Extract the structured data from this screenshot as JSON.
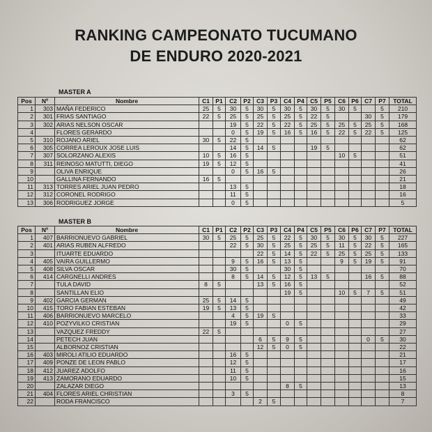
{
  "header": {
    "title_line1": "RANKING CAMPEONATO TUCUMANO",
    "title_line2": "DE ENDURO 2020-2021"
  },
  "columns": [
    "Pos",
    "Nº",
    "Nombre",
    "C1",
    "P1",
    "C2",
    "P2",
    "C3",
    "P3",
    "C4",
    "P4",
    "C5",
    "P5",
    "C6",
    "P6",
    "C7",
    "P7",
    "TOTAL"
  ],
  "tables": [
    {
      "label": "MASTER A",
      "rows": [
        [
          1,
          303,
          "MAÑA FEDERICO",
          25,
          5,
          30,
          5,
          30,
          5,
          30,
          5,
          30,
          5,
          30,
          5,
          null,
          5,
          210
        ],
        [
          2,
          301,
          "FRIAS SANTIAGO",
          22,
          5,
          25,
          5,
          25,
          5,
          25,
          5,
          22,
          5,
          null,
          null,
          30,
          5,
          179
        ],
        [
          3,
          302,
          "ARIAS NELSON OSCAR",
          null,
          null,
          19,
          5,
          22,
          5,
          22,
          5,
          25,
          5,
          25,
          5,
          25,
          5,
          168
        ],
        [
          4,
          null,
          "FLORES GERARDO",
          null,
          null,
          0,
          5,
          19,
          5,
          16,
          5,
          16,
          5,
          22,
          5,
          22,
          5,
          125
        ],
        [
          5,
          310,
          "ROJANO ARIEL",
          30,
          5,
          22,
          5,
          null,
          null,
          null,
          null,
          null,
          null,
          null,
          null,
          null,
          null,
          62
        ],
        [
          6,
          305,
          "CORREA LEROUX JOSE LUIS",
          null,
          null,
          14,
          5,
          14,
          5,
          null,
          null,
          19,
          5,
          null,
          null,
          null,
          null,
          62
        ],
        [
          7,
          307,
          "SOLORZANO ALEXIS",
          10,
          5,
          16,
          5,
          null,
          null,
          null,
          null,
          null,
          null,
          10,
          5,
          null,
          null,
          51
        ],
        [
          8,
          311,
          "REINOSO MATUTTI, DIEGO",
          19,
          5,
          12,
          5,
          null,
          null,
          null,
          null,
          null,
          null,
          null,
          null,
          null,
          null,
          41
        ],
        [
          9,
          null,
          "OLIVA ENRIQUE",
          null,
          null,
          0,
          5,
          16,
          5,
          null,
          null,
          null,
          null,
          null,
          null,
          null,
          null,
          26
        ],
        [
          10,
          null,
          "GALLINA FERNANDO",
          16,
          5,
          null,
          null,
          null,
          null,
          null,
          null,
          null,
          null,
          null,
          null,
          null,
          null,
          21
        ],
        [
          11,
          313,
          "TORRES ARIEL JUAN PEDRO",
          null,
          null,
          13,
          5,
          null,
          null,
          null,
          null,
          null,
          null,
          null,
          null,
          null,
          null,
          18
        ],
        [
          12,
          312,
          "CORONEL RODRIGO",
          null,
          null,
          11,
          5,
          null,
          null,
          null,
          null,
          null,
          null,
          null,
          null,
          null,
          null,
          16
        ],
        [
          13,
          306,
          "RODRIGUEZ JORGE",
          null,
          null,
          0,
          5,
          null,
          null,
          null,
          null,
          null,
          null,
          null,
          null,
          null,
          null,
          5
        ]
      ]
    },
    {
      "label": "MASTER B",
      "rows": [
        [
          1,
          407,
          "BARRIONUEVO GABRIEL",
          30,
          5,
          25,
          5,
          25,
          5,
          22,
          5,
          30,
          5,
          30,
          5,
          30,
          5,
          227
        ],
        [
          2,
          401,
          "ARIAS RUBEN ALFREDO",
          null,
          null,
          22,
          5,
          30,
          5,
          25,
          5,
          25,
          5,
          11,
          5,
          22,
          5,
          165
        ],
        [
          3,
          null,
          "ITUARTE EDUARDO",
          null,
          null,
          null,
          null,
          22,
          5,
          14,
          5,
          22,
          5,
          25,
          5,
          25,
          5,
          133
        ],
        [
          4,
          405,
          "VAIRA GUILLERMO",
          null,
          null,
          9,
          5,
          16,
          5,
          13,
          5,
          null,
          null,
          9,
          5,
          19,
          5,
          91
        ],
        [
          5,
          408,
          "SILVA OSCAR",
          null,
          null,
          30,
          5,
          null,
          null,
          30,
          5,
          null,
          null,
          null,
          null,
          null,
          null,
          70
        ],
        [
          6,
          414,
          "CARGNELLI ANDRES",
          null,
          null,
          8,
          5,
          14,
          5,
          12,
          5,
          13,
          5,
          null,
          null,
          16,
          5,
          88
        ],
        [
          7,
          null,
          "TULA DAVID",
          8,
          5,
          null,
          null,
          13,
          5,
          16,
          5,
          null,
          null,
          null,
          null,
          null,
          null,
          52
        ],
        [
          8,
          null,
          "SANTILLAN ELIO",
          null,
          null,
          null,
          null,
          null,
          null,
          19,
          5,
          null,
          null,
          10,
          5,
          7,
          5,
          51
        ],
        [
          9,
          402,
          "GARCIA GERMAN",
          25,
          5,
          14,
          5,
          null,
          null,
          null,
          null,
          null,
          null,
          null,
          null,
          null,
          null,
          49
        ],
        [
          10,
          415,
          "TORO FABIAN ESTEBAN",
          19,
          5,
          13,
          5,
          null,
          null,
          null,
          null,
          null,
          null,
          null,
          null,
          null,
          null,
          42
        ],
        [
          11,
          406,
          "BARRIONUEVO MARCELO",
          null,
          null,
          4,
          5,
          19,
          5,
          null,
          null,
          null,
          null,
          null,
          null,
          null,
          null,
          33
        ],
        [
          12,
          410,
          "POZYVILKO CRISTIAN",
          null,
          null,
          19,
          5,
          null,
          null,
          0,
          5,
          null,
          null,
          null,
          null,
          null,
          null,
          29
        ],
        [
          13,
          null,
          "VAZQUEZ FREDDY",
          22,
          5,
          null,
          null,
          null,
          null,
          null,
          null,
          null,
          null,
          null,
          null,
          null,
          null,
          27
        ],
        [
          14,
          null,
          "PETECH JUAN",
          null,
          null,
          null,
          null,
          6,
          5,
          9,
          5,
          null,
          null,
          null,
          null,
          0,
          5,
          30
        ],
        [
          15,
          null,
          "ALBORNOZ CRISTIAN",
          null,
          null,
          null,
          null,
          12,
          5,
          0,
          5,
          null,
          null,
          null,
          null,
          null,
          null,
          22
        ],
        [
          16,
          403,
          "MIROLI ATILIO EDUARDO",
          null,
          null,
          16,
          5,
          null,
          null,
          null,
          null,
          null,
          null,
          null,
          null,
          null,
          null,
          21
        ],
        [
          17,
          409,
          "PONZE DE LEON PABLO",
          null,
          null,
          12,
          5,
          null,
          null,
          null,
          null,
          null,
          null,
          null,
          null,
          null,
          null,
          17
        ],
        [
          18,
          412,
          "JUAREZ ADOLFO",
          null,
          null,
          11,
          5,
          null,
          null,
          null,
          null,
          null,
          null,
          null,
          null,
          null,
          null,
          16
        ],
        [
          19,
          413,
          "ZAMORANO EDUARDO",
          null,
          null,
          10,
          5,
          null,
          null,
          null,
          null,
          null,
          null,
          null,
          null,
          null,
          null,
          15
        ],
        [
          20,
          null,
          "ZALAZAR DIEGO",
          null,
          null,
          null,
          null,
          null,
          null,
          8,
          5,
          null,
          null,
          null,
          null,
          null,
          null,
          13
        ],
        [
          21,
          404,
          "FLORES ARIEL CHRISTIAN",
          null,
          null,
          3,
          5,
          null,
          null,
          null,
          null,
          null,
          null,
          null,
          null,
          null,
          null,
          8
        ],
        [
          22,
          null,
          "RODA FRANCISCO",
          null,
          null,
          null,
          null,
          2,
          5,
          null,
          null,
          null,
          null,
          null,
          null,
          null,
          null,
          7
        ]
      ]
    }
  ]
}
